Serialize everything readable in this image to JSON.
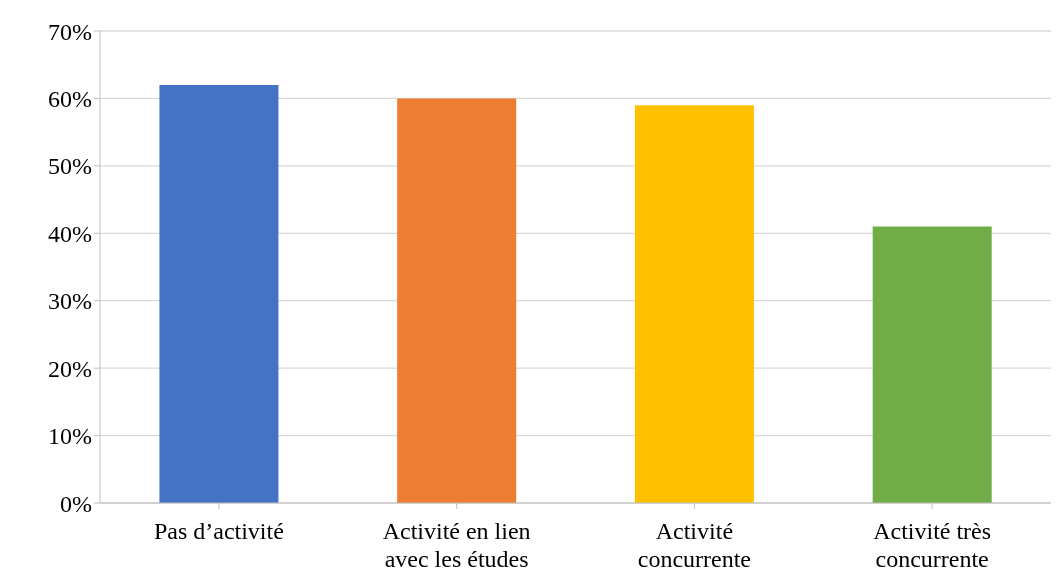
{
  "chart_data": {
    "type": "bar",
    "categories": [
      "Pas d’activité",
      "Activité en lien avec les études",
      "Activité concurrente",
      "Activité très concurrente"
    ],
    "values": [
      62,
      60,
      59,
      41
    ],
    "colors": [
      "#4472c4",
      "#ed7d31",
      "#ffc000",
      "#70ad47"
    ],
    "ylim": [
      0,
      70
    ],
    "yticks": [
      {
        "value": 0,
        "label": "0%"
      },
      {
        "value": 10,
        "label": "10%"
      },
      {
        "value": 20,
        "label": "20%"
      },
      {
        "value": 30,
        "label": "30%"
      },
      {
        "value": 40,
        "label": "40%"
      },
      {
        "value": 50,
        "label": "50%"
      },
      {
        "value": 60,
        "label": "60%"
      },
      {
        "value": 70,
        "label": "70%"
      }
    ],
    "grid": "y"
  }
}
